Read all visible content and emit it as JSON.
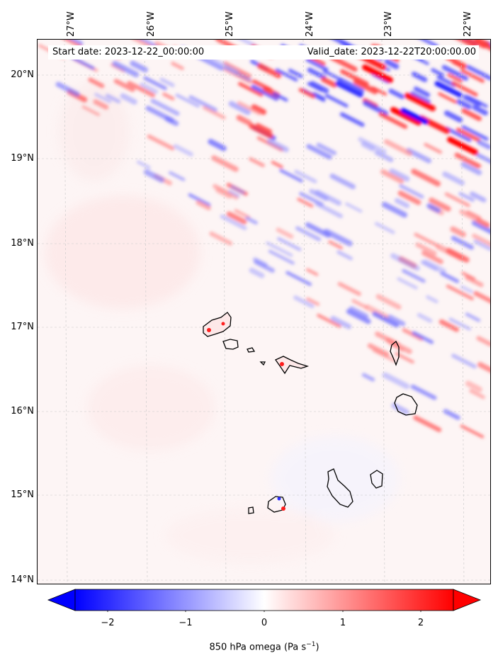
{
  "map": {
    "start_date": "Start date: 2023-12-22_00:00:00",
    "valid_date": "Valid_date: 2023-12-22T20:00:00.00",
    "lon_labels": [
      "27°W",
      "26°W",
      "25°W",
      "24°W",
      "23°W",
      "22°W"
    ],
    "lat_labels": [
      "20°N",
      "19°N",
      "18°N",
      "17°N",
      "16°N",
      "15°N",
      "14°N"
    ],
    "field": "850 hPa omega",
    "islands": [
      "Santo Antão",
      "São Vicente",
      "Santa Luzia",
      "São Nicolau",
      "Sal",
      "Boa Vista",
      "Brava",
      "Fogo",
      "Santiago",
      "Maio"
    ],
    "colors": {
      "negative": "#0000ff",
      "positive": "#ff0000",
      "neutral": "#ffffff",
      "coast": "#000000",
      "grid": "#c8c8c8"
    }
  },
  "colorbar": {
    "label_text": "850 hPa omega (Pa s",
    "label_sup": "−1",
    "label_close": ")",
    "ticks": [
      "−2",
      "−1",
      "0",
      "1",
      "2"
    ],
    "range": [
      -2.5,
      2.5
    ],
    "extend": "both",
    "cmap": "bwr"
  }
}
